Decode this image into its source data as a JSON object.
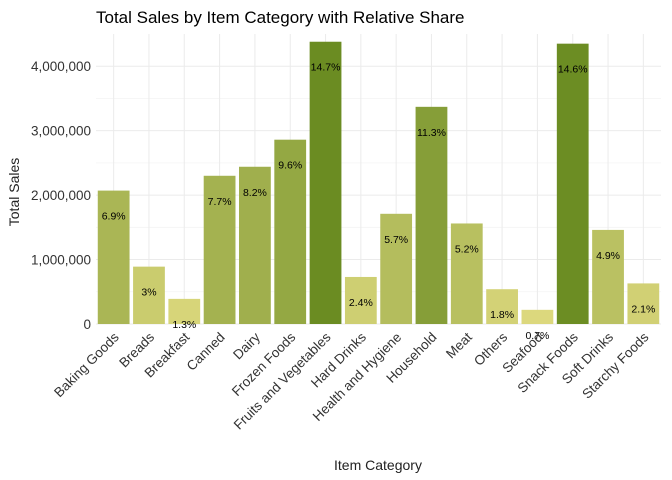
{
  "chart_data": {
    "type": "bar",
    "title": "Total Sales by Item Category with Relative Share",
    "xlabel": "Item Category",
    "ylabel": "Total Sales",
    "ylim": [
      0,
      4500000
    ],
    "yticks": [
      0,
      1000000,
      2000000,
      3000000,
      4000000
    ],
    "ytick_labels": [
      "0",
      "1,000,000",
      "2,000,000",
      "3,000,000",
      "4,000,000"
    ],
    "grid": true,
    "legend": "none",
    "categories": [
      "Baking Goods",
      "Breads",
      "Breakfast",
      "Canned",
      "Dairy",
      "Frozen Foods",
      "Fruits and Vegetables",
      "Hard Drinks",
      "Health and Hygiene",
      "Household",
      "Meat",
      "Others",
      "Seafood",
      "Snack Foods",
      "Soft Drinks",
      "Starchy Foods"
    ],
    "values": [
      2070000,
      890000,
      390000,
      2300000,
      2440000,
      2860000,
      4380000,
      730000,
      1710000,
      3370000,
      1560000,
      540000,
      220000,
      4350000,
      1460000,
      630000
    ],
    "share_labels": [
      "6.9%",
      "3%",
      "1.3%",
      "7.7%",
      "8.2%",
      "9.6%",
      "14.7%",
      "2.4%",
      "5.7%",
      "11.3%",
      "5.2%",
      "1.8%",
      "0.7%",
      "14.6%",
      "4.9%",
      "2.1%"
    ],
    "colors": {
      "low": "#e2dc82",
      "high": "#6b8c22"
    }
  }
}
